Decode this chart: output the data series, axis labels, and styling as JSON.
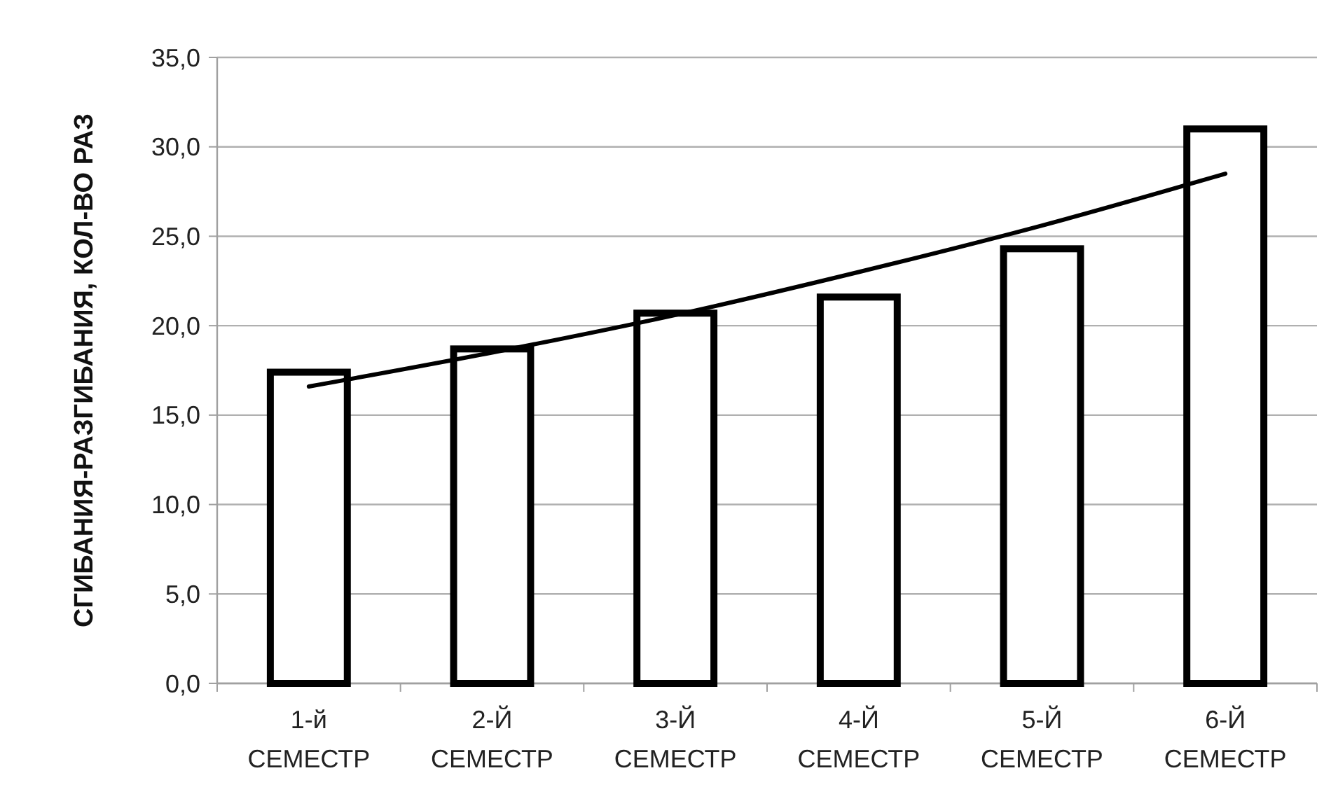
{
  "chart_data": {
    "type": "bar",
    "ylabel": "СГИБАНИЯ-РАЗГИБАНИЯ, КОЛ-ВО РАЗ",
    "categories": [
      "1-й СЕМЕСТР",
      "2-Й СЕМЕСТР",
      "3-Й СЕМЕСТР",
      "4-Й СЕМЕСТР",
      "5-Й СЕМЕСТР",
      "6-Й СЕМЕСТР"
    ],
    "series": [
      {
        "color": "#000000",
        "values": [
          17.4,
          18.7,
          20.7,
          21.6,
          24.3,
          31.0
        ]
      },
      {
        "type": "line",
        "color": "#000000",
        "values": [
          16.6,
          18.5,
          20.6,
          23.0,
          25.6,
          28.5
        ]
      }
    ],
    "ylim": [
      0,
      35
    ],
    "yticks": [
      {
        "value": 0,
        "label": "0,0"
      },
      {
        "value": 5,
        "label": "5,0"
      },
      {
        "value": 10,
        "label": "10,0"
      },
      {
        "value": 15,
        "label": "15,0"
      },
      {
        "value": 20,
        "label": "20,0"
      },
      {
        "value": 25,
        "label": "25,0"
      },
      {
        "value": 30,
        "label": "30,0"
      },
      {
        "value": 35,
        "label": "35,0"
      }
    ],
    "grid": "y",
    "marker": "none",
    "line_style": "solid"
  }
}
